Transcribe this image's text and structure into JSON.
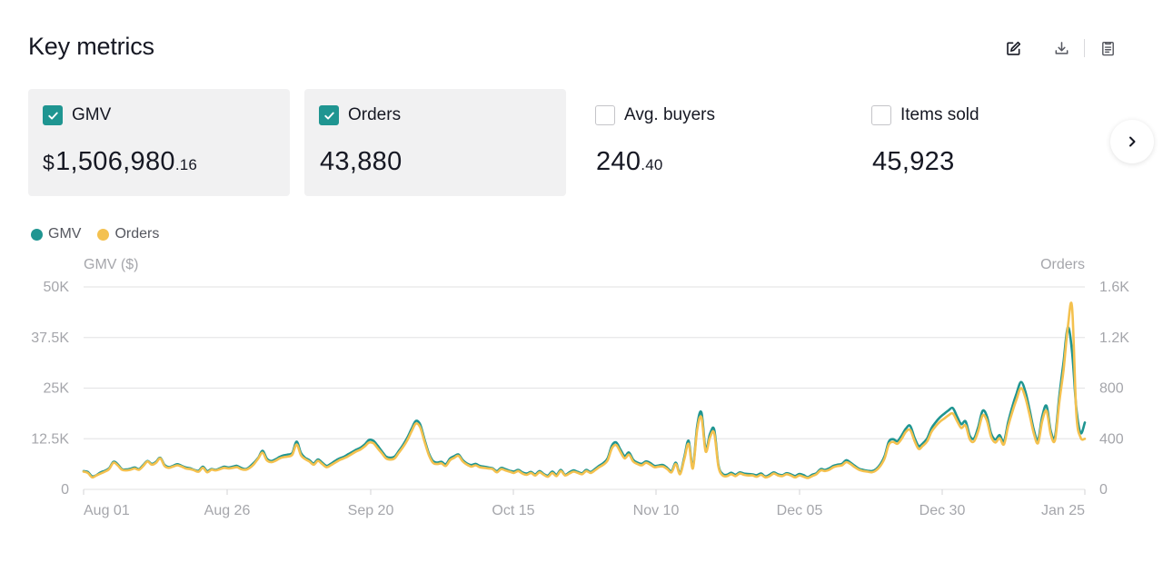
{
  "page": {
    "title": "Key metrics"
  },
  "toolbar": {
    "edit_icon": "edit-icon",
    "download_icon": "download-icon",
    "report_icon": "document-icon"
  },
  "metrics": [
    {
      "label": "GMV",
      "checked": true,
      "currency": "$",
      "value": "1,506,980",
      "decimal": ".16"
    },
    {
      "label": "Orders",
      "checked": true,
      "currency": "",
      "value": "43,880",
      "decimal": ""
    },
    {
      "label": "Avg. buyers",
      "checked": false,
      "currency": "",
      "value": "240",
      "decimal": ".40"
    },
    {
      "label": "Items sold",
      "checked": false,
      "currency": "",
      "value": "45,923",
      "decimal": ""
    }
  ],
  "colors": {
    "gmv": "#1f9591",
    "orders": "#f4c14f",
    "grid": "#e6e6e8",
    "axis_text": "#a5a6ab"
  },
  "legend": [
    "GMV",
    "Orders"
  ],
  "chart_data": {
    "type": "line",
    "xlabel": "",
    "ylabel_left": "GMV ($)",
    "ylabel_right": "Orders",
    "ylim_left": [
      0,
      50000
    ],
    "ylim_right": [
      0,
      1600
    ],
    "y_ticks_left": [
      "0",
      "12.5K",
      "25K",
      "37.5K",
      "50K"
    ],
    "y_ticks_right": [
      "0",
      "400",
      "800",
      "1.2K",
      "1.6K"
    ],
    "x_ticks": [
      "Aug 01",
      "Aug 26",
      "Sep 20",
      "Oct 15",
      "Nov 10",
      "Dec 05",
      "Dec 30",
      "Jan 25"
    ],
    "x_start": "Aug 01",
    "x_end": "Jan 25",
    "grid": true,
    "legend_position": "top-left",
    "series": [
      {
        "name": "GMV",
        "axis": "left",
        "values": [
          4500,
          4300,
          3200,
          3500,
          4200,
          4600,
          5200,
          6800,
          6200,
          5000,
          4900,
          5100,
          5400,
          5000,
          6000,
          7000,
          6300,
          6800,
          7800,
          6000,
          5500,
          5800,
          6200,
          5800,
          5400,
          5200,
          4800,
          4600,
          5600,
          4500,
          5000,
          4800,
          5200,
          5600,
          5400,
          5600,
          5800,
          5300,
          5000,
          5600,
          6600,
          7800,
          9500,
          7600,
          7000,
          7400,
          8000,
          8400,
          8600,
          9000,
          11800,
          9000,
          7800,
          7200,
          6400,
          7400,
          6600,
          5800,
          6300,
          7000,
          7600,
          8000,
          8600,
          9200,
          9800,
          10300,
          11100,
          12200,
          12000,
          10800,
          9400,
          8100,
          7800,
          8100,
          9500,
          11000,
          12800,
          15000,
          16900,
          16000,
          12400,
          9000,
          7000,
          6600,
          6800,
          6200,
          7600,
          8200,
          8600,
          7200,
          6400,
          6000,
          6300,
          5800,
          5600,
          5400,
          5200,
          4500,
          5300,
          5000,
          4600,
          4400,
          4800,
          4200,
          3900,
          4300,
          3700,
          4500,
          3800,
          3400,
          4400,
          3600,
          4800,
          3600,
          4200,
          4700,
          4300,
          4000,
          4800,
          4300,
          5000,
          5800,
          6500,
          7700,
          10800,
          11600,
          9800,
          8200,
          9100,
          7300,
          6600,
          6300,
          6900,
          6500,
          5800,
          5900,
          6000,
          5300,
          4500,
          6600,
          4000,
          8000,
          12000,
          5500,
          15600,
          19000,
          10000,
          13600,
          14800,
          6000,
          3800,
          3600,
          4100,
          3600,
          4200,
          3900,
          3800,
          3700,
          3500,
          3900,
          3200,
          3600,
          4200,
          3700,
          3500,
          4000,
          3700,
          3300,
          3800,
          3500,
          3000,
          3600,
          4000,
          5000,
          4800,
          5200,
          5800,
          6100,
          6300,
          7200,
          6600,
          5800,
          5100,
          4800,
          4600,
          4500,
          5000,
          6200,
          8200,
          11800,
          12400,
          11900,
          13300,
          15000,
          15700,
          12800,
          10700,
          11400,
          12600,
          15100,
          16600,
          17800,
          18700,
          19500,
          20100,
          18000,
          16100,
          16800,
          13200,
          12600,
          15500,
          19400,
          18100,
          13800,
          12300,
          13400,
          11800,
          16600,
          20500,
          23800,
          26500,
          24300,
          19800,
          14800,
          12200,
          18000,
          20600,
          14400,
          13000,
          23000,
          31500,
          40000,
          34000,
          20000,
          13900,
          16500
        ]
      },
      {
        "name": "Orders",
        "axis": "right",
        "values": [
          140,
          130,
          95,
          110,
          125,
          140,
          160,
          210,
          190,
          155,
          150,
          155,
          165,
          155,
          185,
          220,
          195,
          210,
          245,
          185,
          170,
          180,
          190,
          180,
          165,
          160,
          150,
          140,
          170,
          135,
          155,
          150,
          160,
          170,
          165,
          170,
          175,
          160,
          155,
          170,
          200,
          245,
          290,
          230,
          215,
          225,
          245,
          255,
          260,
          275,
          355,
          270,
          240,
          220,
          195,
          225,
          200,
          175,
          190,
          210,
          230,
          245,
          260,
          280,
          300,
          315,
          340,
          370,
          365,
          325,
          285,
          245,
          235,
          245,
          290,
          335,
          390,
          460,
          520,
          490,
          380,
          275,
          210,
          200,
          205,
          185,
          230,
          250,
          265,
          220,
          195,
          180,
          190,
          175,
          170,
          165,
          160,
          135,
          160,
          150,
          140,
          130,
          145,
          125,
          115,
          130,
          110,
          135,
          115,
          100,
          130,
          105,
          145,
          110,
          125,
          140,
          130,
          120,
          145,
          130,
          150,
          175,
          195,
          230,
          325,
          350,
          295,
          245,
          275,
          220,
          200,
          190,
          210,
          195,
          175,
          180,
          180,
          160,
          135,
          200,
          120,
          240,
          360,
          165,
          470,
          570,
          300,
          410,
          445,
          180,
          110,
          105,
          120,
          105,
          125,
          115,
          110,
          110,
          100,
          115,
          95,
          105,
          125,
          110,
          105,
          120,
          110,
          95,
          110,
          100,
          90,
          105,
          120,
          150,
          145,
          155,
          175,
          185,
          190,
          215,
          200,
          175,
          155,
          145,
          140,
          135,
          150,
          185,
          245,
          355,
          375,
          360,
          400,
          455,
          470,
          385,
          320,
          345,
          380,
          455,
          500,
          535,
          560,
          585,
          600,
          540,
          485,
          505,
          395,
          380,
          465,
          585,
          545,
          415,
          370,
          405,
          355,
          500,
          615,
          715,
          800,
          730,
          595,
          445,
          365,
          540,
          620,
          435,
          390,
          690,
          945,
          1280,
          1440,
          600,
          410,
          400
        ]
      }
    ]
  }
}
